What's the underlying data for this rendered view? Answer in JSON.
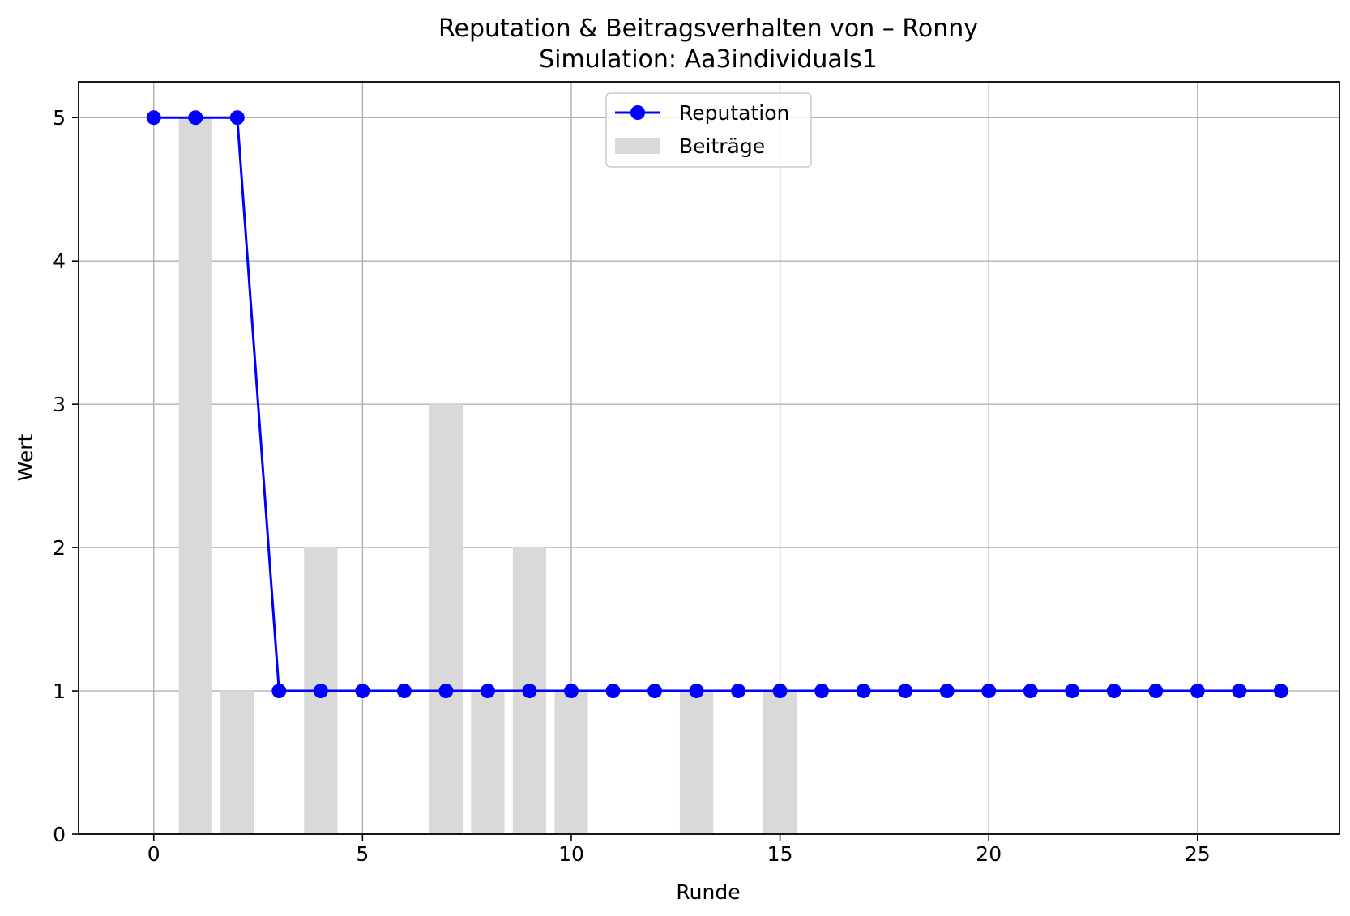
{
  "chart_data": {
    "type": "line",
    "title": "Reputation & Beitragsverhalten von – Ronny",
    "subtitle": "Simulation: Aa3individuals1",
    "xlabel": "Runde",
    "ylabel": "Wert",
    "xlim": [
      -1.8,
      28.4
    ],
    "ylim": [
      0,
      5.25
    ],
    "xticks": [
      0,
      5,
      10,
      15,
      20,
      25
    ],
    "yticks": [
      0,
      1,
      2,
      3,
      4,
      5
    ],
    "grid": true,
    "legend_position": "top-center",
    "series": [
      {
        "name": "Reputation",
        "kind": "line",
        "color": "#0000ff",
        "marker": "circle",
        "x": [
          0,
          1,
          2,
          3,
          4,
          5,
          6,
          7,
          8,
          9,
          10,
          11,
          12,
          13,
          14,
          15,
          16,
          17,
          18,
          19,
          20,
          21,
          22,
          23,
          24,
          25,
          26,
          27
        ],
        "values": [
          5,
          5,
          5,
          1,
          1,
          1,
          1,
          1,
          1,
          1,
          1,
          1,
          1,
          1,
          1,
          1,
          1,
          1,
          1,
          1,
          1,
          1,
          1,
          1,
          1,
          1,
          1,
          1
        ]
      },
      {
        "name": "Beiträge",
        "kind": "bar",
        "color": "#d9d9d9",
        "x": [
          0,
          1,
          2,
          3,
          4,
          5,
          6,
          7,
          8,
          9,
          10,
          11,
          12,
          13,
          14,
          15,
          16,
          17,
          18,
          19,
          20,
          21,
          22,
          23,
          24,
          25,
          26,
          27
        ],
        "values": [
          0,
          5,
          1,
          0,
          2,
          0,
          0,
          3,
          1,
          2,
          1,
          0,
          0,
          1,
          0,
          1,
          0,
          0,
          0,
          0,
          0,
          0,
          0,
          0,
          0,
          0,
          0,
          0
        ]
      }
    ]
  }
}
